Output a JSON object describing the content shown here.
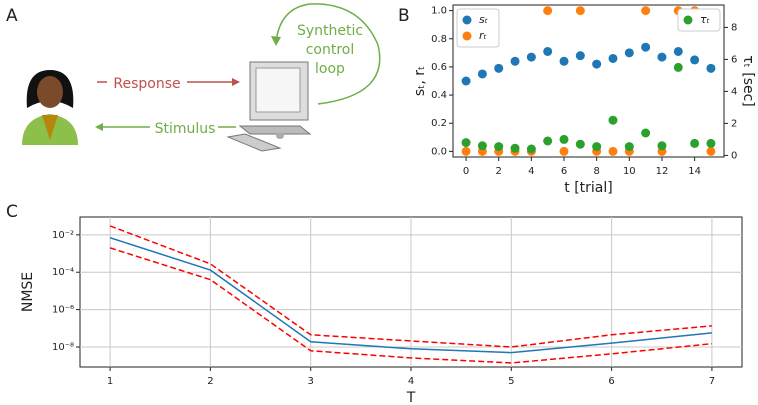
{
  "panels": {
    "a": "A",
    "b": "B",
    "c": "C"
  },
  "diagram": {
    "response": "Response",
    "stimulus": "Stimulus",
    "loop": [
      "Synthetic",
      "control",
      "loop"
    ]
  },
  "chart_data": [
    {
      "type": "scatter",
      "x": [
        0,
        1,
        2,
        3,
        4,
        5,
        6,
        7,
        8,
        9,
        10,
        11,
        12,
        13,
        14,
        15
      ],
      "xlim": [
        -0.8,
        15.8
      ],
      "xticks": [
        0,
        2,
        4,
        6,
        8,
        10,
        12,
        14
      ],
      "xlabel": "t [trial]",
      "ylabel": "sₜ, rₜ",
      "y2label": "τₜ [sec]",
      "ylim": [
        -0.04,
        1.04
      ],
      "yticks": [
        {
          "value": 0,
          "label": "0.0"
        },
        0.2,
        0.4,
        0.6,
        0.8,
        {
          "value": 1,
          "label": "1.0"
        }
      ],
      "y2lim": [
        -0.1,
        9.4
      ],
      "y2ticks": [
        0,
        2,
        4,
        6,
        8
      ],
      "grid": false,
      "series": [
        {
          "name": "sₜ",
          "color": "#1f77b4",
          "legend": "upper left",
          "values": [
            0.5,
            0.55,
            0.59,
            0.64,
            0.67,
            0.71,
            0.64,
            0.68,
            0.62,
            0.66,
            0.7,
            0.74,
            0.67,
            0.71,
            0.65,
            0.59
          ]
        },
        {
          "name": "rₜ",
          "color": "#ff7f0e",
          "legend": "upper left",
          "values": [
            0,
            0,
            0,
            0,
            0,
            1,
            0,
            1,
            0,
            0,
            0,
            1,
            0,
            1,
            1,
            0
          ]
        },
        {
          "name": "τₜ",
          "color": "#2ca02c",
          "axis": "y2",
          "legend": "upper right",
          "values": [
            0.8,
            0.6,
            0.55,
            0.45,
            0.4,
            0.9,
            1.0,
            0.7,
            0.55,
            2.2,
            0.55,
            1.4,
            0.6,
            5.5,
            0.75,
            0.75
          ]
        }
      ]
    },
    {
      "type": "line",
      "x": [
        1,
        2,
        3,
        4,
        5,
        6,
        7
      ],
      "xlim": [
        0.7,
        7.3
      ],
      "xticks": [
        1,
        2,
        3,
        4,
        5,
        6,
        7
      ],
      "xlabel": "T",
      "ylabel": "NMSE",
      "log_y": true,
      "ylim": [
        8.5e-10,
        0.09
      ],
      "yticks": [
        {
          "value": 0.01,
          "label": "10⁻²"
        },
        {
          "value": 0.0001,
          "label": "10⁻⁴"
        },
        {
          "value": 1e-06,
          "label": "10⁻⁶"
        },
        {
          "value": 1e-08,
          "label": "10⁻⁸"
        }
      ],
      "grid": true,
      "series": [
        {
          "color": "#1f77b4",
          "linestyle": "solid",
          "values": [
            0.007,
            0.00013,
            1.9e-08,
            8e-09,
            5e-09,
            1.6e-08,
            5.7e-08
          ]
        },
        {
          "color": "#ff0000",
          "linestyle": "dashed",
          "values": [
            0.03,
            0.00028,
            4.5e-08,
            2.1e-08,
            1e-08,
            4.5e-08,
            1.35e-07
          ]
        },
        {
          "color": "#ff0000",
          "linestyle": "dashed",
          "values": [
            0.002,
            4e-05,
            6.3e-09,
            2.6e-09,
            1.4e-09,
            4.3e-09,
            1.5e-08
          ]
        }
      ]
    }
  ]
}
